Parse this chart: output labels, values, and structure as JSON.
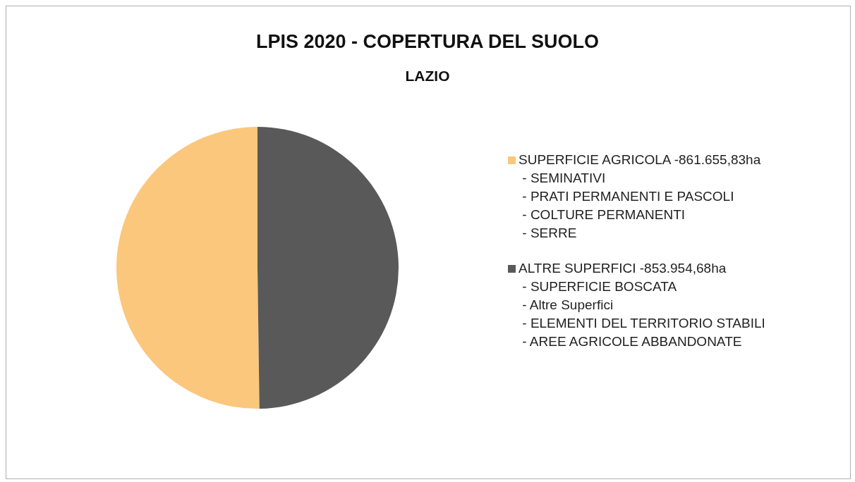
{
  "chart_data": {
    "type": "pie",
    "title": "LPIS 2020 - COPERTURA DEL SUOLO",
    "subtitle": "LAZIO",
    "categories": [
      "SUPERFICIE AGRICOLA -861.655,83ha\n - SEMINATIVI\n - PRATI PERMANENTI E PASCOLI\n - COLTURE PERMANENTI\n - SERRE",
      "ALTRE SUPERFICI -853.954,68ha\n - SUPERFICIE BOSCATA\n - Altre Superfici\n - ELEMENTI DEL TERRITORIO STABILI\n - AREE AGRICOLE ABBANDONATE"
    ],
    "values": [
      50.22,
      49.78
    ],
    "colors": [
      "#fbc77c",
      "#595959"
    ],
    "legend": "right"
  }
}
